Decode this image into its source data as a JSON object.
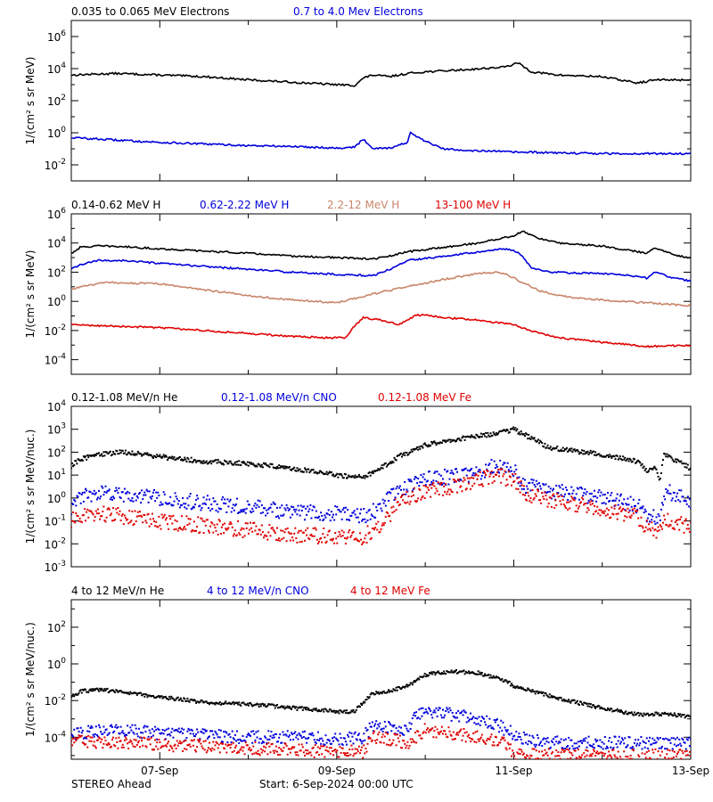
{
  "footer": {
    "left": "STEREO Ahead",
    "center": "Start:  6-Sep-2024 00:00 UTC"
  },
  "x_axis": {
    "tick_labels": [
      "07-Sep",
      "09-Sep",
      "11-Sep",
      "13-Sep"
    ],
    "tick_values": [
      1,
      3,
      5,
      7
    ],
    "range": [
      0,
      7
    ],
    "unit": "days since start"
  },
  "colors": {
    "black": "#000000",
    "blue": "#0000dd",
    "tan": "#c8866a",
    "red": "#e00000"
  },
  "chart_data": [
    {
      "type": "line",
      "ylabel": "1/(cm² s sr MeV)",
      "ylim_log10": [
        -3,
        7
      ],
      "yticks_log10": [
        -2,
        0,
        2,
        4,
        6
      ],
      "ticklabels": [
        "10^-2",
        "10^0",
        "10^2",
        "10^4",
        "10^6"
      ],
      "series": [
        {
          "name": "0.035 to 0.065 MeV Electrons",
          "color": "#000000",
          "x": [
            0,
            0.5,
            1.0,
            1.5,
            2.0,
            2.5,
            3.0,
            3.2,
            3.3,
            3.4,
            3.6,
            3.8,
            4.0,
            4.5,
            4.9,
            5.05,
            5.2,
            5.5,
            6.0,
            6.4,
            6.6,
            7.0
          ],
          "y": [
            3.6,
            3.7,
            3.6,
            3.5,
            3.3,
            3.15,
            3.0,
            2.95,
            3.4,
            3.6,
            3.5,
            3.7,
            3.8,
            3.95,
            4.1,
            4.35,
            3.8,
            3.6,
            3.5,
            3.1,
            3.3,
            3.3
          ]
        },
        {
          "name": "0.7 to 4.0 Mev Electrons",
          "color": "#0000dd",
          "x": [
            0,
            0.5,
            1.0,
            1.5,
            2.0,
            2.5,
            3.0,
            3.2,
            3.3,
            3.4,
            3.6,
            3.8,
            3.83,
            3.95,
            4.2,
            4.5,
            5.0,
            5.5,
            6.0,
            6.5,
            7.0
          ],
          "y": [
            -0.3,
            -0.45,
            -0.6,
            -0.7,
            -0.8,
            -0.85,
            -0.95,
            -0.9,
            -0.4,
            -0.95,
            -0.95,
            -0.6,
            0.0,
            -0.4,
            -1.0,
            -1.1,
            -1.2,
            -1.25,
            -1.3,
            -1.3,
            -1.3
          ]
        }
      ]
    },
    {
      "type": "line",
      "ylabel": "1/(cm² s sr MeV)",
      "ylim_log10": [
        -5,
        6
      ],
      "yticks_log10": [
        -4,
        -2,
        0,
        2,
        4,
        6
      ],
      "ticklabels": [
        "10^-4",
        "10^-2",
        "10^0",
        "10^2",
        "10^4",
        "10^6"
      ],
      "series": [
        {
          "name": "0.14-0.62 MeV H",
          "color": "#000000",
          "x": [
            0,
            0.1,
            0.3,
            0.6,
            1.0,
            1.5,
            2.0,
            2.5,
            3.0,
            3.4,
            3.6,
            3.8,
            4.2,
            4.6,
            5.0,
            5.1,
            5.3,
            5.5,
            6.0,
            6.3,
            6.5,
            6.6,
            6.8,
            7.0
          ],
          "y": [
            3.3,
            3.7,
            3.8,
            3.75,
            3.6,
            3.45,
            3.3,
            3.1,
            3.0,
            2.9,
            3.1,
            3.4,
            3.7,
            4.0,
            4.5,
            4.8,
            4.3,
            4.0,
            3.8,
            3.5,
            3.3,
            3.7,
            3.2,
            3.0
          ]
        },
        {
          "name": "0.62-2.22 MeV H",
          "color": "#0000dd",
          "x": [
            0,
            0.1,
            0.3,
            0.6,
            1.0,
            1.5,
            2.0,
            2.5,
            3.0,
            3.4,
            3.6,
            3.8,
            4.2,
            4.6,
            4.9,
            5.0,
            5.1,
            5.2,
            5.4,
            6.0,
            6.3,
            6.5,
            6.6,
            6.8,
            7.0
          ],
          "y": [
            2.2,
            2.5,
            2.8,
            2.8,
            2.6,
            2.4,
            2.2,
            2.0,
            1.85,
            1.75,
            2.2,
            2.8,
            3.1,
            3.4,
            3.6,
            3.5,
            3.1,
            2.3,
            2.0,
            1.9,
            1.8,
            1.6,
            2.0,
            1.6,
            1.4
          ]
        },
        {
          "name": "2.2-12 MeV H",
          "color": "#c8866a",
          "x": [
            0,
            0.1,
            0.4,
            1.0,
            1.5,
            2.0,
            2.5,
            3.0,
            3.2,
            3.4,
            3.8,
            4.2,
            4.6,
            4.8,
            4.9,
            5.1,
            5.3,
            5.6,
            6.0,
            6.5,
            7.0
          ],
          "y": [
            0.8,
            1.0,
            1.3,
            1.2,
            0.8,
            0.4,
            0.1,
            -0.1,
            0.2,
            0.5,
            1.0,
            1.5,
            1.9,
            2.0,
            1.9,
            1.3,
            0.7,
            0.3,
            0.1,
            -0.1,
            -0.3
          ]
        },
        {
          "name": "13-100 MeV H",
          "color": "#e00000",
          "x": [
            0,
            0.5,
            1.0,
            1.5,
            2.0,
            2.5,
            2.9,
            3.1,
            3.2,
            3.3,
            3.5,
            3.7,
            3.8,
            3.9,
            4.0,
            4.2,
            4.6,
            5.0,
            5.2,
            5.5,
            6.0,
            6.5,
            7.0
          ],
          "y": [
            -1.6,
            -1.7,
            -1.8,
            -2.0,
            -2.2,
            -2.4,
            -2.5,
            -2.5,
            -1.7,
            -1.1,
            -1.3,
            -1.6,
            -1.3,
            -0.95,
            -0.95,
            -1.1,
            -1.3,
            -1.6,
            -2.0,
            -2.5,
            -2.8,
            -3.1,
            -3.0
          ]
        }
      ]
    },
    {
      "type": "scatter",
      "ylabel": "1/(cm² s sr MeV/nuc.)",
      "ylim_log10": [
        -3,
        4
      ],
      "yticks_log10": [
        -3,
        -2,
        -1,
        0,
        1,
        2,
        3,
        4
      ],
      "ticklabels": [
        "10^-3",
        "10^-2",
        "10^-1",
        "10^0",
        "10^1",
        "10^2",
        "10^3",
        "10^4"
      ],
      "series": [
        {
          "name": "0.12-1.08 MeV/n He",
          "color": "#000000",
          "x": [
            0,
            0.1,
            0.3,
            0.6,
            1.0,
            1.5,
            2.0,
            2.5,
            3.0,
            3.3,
            3.5,
            3.7,
            4.0,
            4.4,
            4.8,
            5.0,
            5.2,
            5.4,
            6.0,
            6.4,
            6.5,
            6.6,
            6.65,
            6.7,
            6.8,
            7.0
          ],
          "y": [
            1.4,
            1.7,
            1.9,
            2.0,
            1.8,
            1.6,
            1.5,
            1.3,
            1.0,
            0.9,
            1.3,
            1.8,
            2.3,
            2.6,
            2.8,
            3.0,
            2.6,
            2.2,
            1.9,
            1.6,
            1.2,
            1.3,
            0.7,
            1.9,
            1.7,
            1.3
          ]
        },
        {
          "name": "0.12-1.08 MeV/n CNO",
          "color": "#0000dd",
          "x": [
            0,
            0.1,
            0.3,
            0.6,
            1.0,
            1.5,
            2.0,
            2.5,
            3.0,
            3.3,
            3.5,
            3.7,
            4.0,
            4.4,
            4.6,
            4.8,
            5.0,
            5.1,
            5.2,
            5.4,
            6.0,
            6.4,
            6.5,
            6.65,
            6.7,
            6.8,
            7.0
          ],
          "y": [
            -0.4,
            0.0,
            0.2,
            0.1,
            0.0,
            -0.2,
            -0.4,
            -0.6,
            -0.7,
            -0.8,
            -0.4,
            0.4,
            0.8,
            1.0,
            1.1,
            1.4,
            1.2,
            0.6,
            0.5,
            0.3,
            0.0,
            -0.3,
            -0.7,
            -0.9,
            0.3,
            0.2,
            -0.2
          ]
        },
        {
          "name": "0.12-1.08 MeV Fe",
          "color": "#e00000",
          "x": [
            0,
            0.1,
            0.3,
            0.6,
            1.0,
            1.5,
            2.0,
            2.5,
            3.0,
            3.3,
            3.5,
            3.7,
            4.0,
            4.4,
            4.6,
            4.8,
            5.0,
            5.1,
            5.3,
            5.6,
            6.0,
            6.4,
            6.5,
            6.65,
            6.7,
            6.8,
            7.0
          ],
          "y": [
            -1.0,
            -0.8,
            -0.7,
            -0.8,
            -1.0,
            -1.2,
            -1.4,
            -1.6,
            -1.7,
            -1.7,
            -1.2,
            -0.2,
            0.3,
            0.6,
            0.8,
            1.0,
            0.8,
            0.3,
            0.0,
            -0.2,
            -0.5,
            -0.8,
            -1.3,
            -1.5,
            -0.8,
            -1.0,
            -1.3
          ]
        }
      ]
    },
    {
      "type": "scatter",
      "ylabel": "1/(cm² s sr MeV/nuc.)",
      "ylim_log10": [
        -5.2,
        3.5
      ],
      "yticks_log10": [
        -4,
        -2,
        0,
        2
      ],
      "ticklabels": [
        "10^-4",
        "10^-2",
        "10^0",
        "10^2"
      ],
      "series": [
        {
          "name": "4 to 12 MeV/n He",
          "color": "#000000",
          "x": [
            0,
            0.1,
            0.3,
            0.5,
            1.0,
            1.5,
            2.0,
            2.5,
            3.0,
            3.2,
            3.4,
            3.6,
            3.8,
            4.0,
            4.3,
            4.6,
            4.9,
            5.0,
            5.3,
            5.6,
            6.0,
            6.3,
            6.5,
            6.7,
            7.0
          ],
          "y": [
            -1.8,
            -1.5,
            -1.4,
            -1.5,
            -1.8,
            -2.1,
            -2.2,
            -2.4,
            -2.6,
            -2.6,
            -1.6,
            -1.5,
            -1.2,
            -0.6,
            -0.4,
            -0.5,
            -0.9,
            -1.2,
            -1.6,
            -2.0,
            -2.4,
            -2.7,
            -2.8,
            -2.7,
            -2.9
          ]
        },
        {
          "name": "4 to 12 MeV/n CNO",
          "color": "#0000dd",
          "x": [
            0,
            0.5,
            1.0,
            1.5,
            2.0,
            2.5,
            3.0,
            3.3,
            3.4,
            3.6,
            3.8,
            3.9,
            4.0,
            4.2,
            4.5,
            4.8,
            5.0,
            5.2,
            5.4,
            6.0,
            6.5,
            7.0
          ],
          "y": [
            -3.8,
            -3.6,
            -3.8,
            -3.9,
            -4.0,
            -4.0,
            -4.1,
            -4.0,
            -3.4,
            -3.5,
            -3.6,
            -2.8,
            -2.6,
            -2.7,
            -2.9,
            -3.3,
            -3.8,
            -4.2,
            -4.3,
            -4.3,
            -4.3,
            -4.3
          ]
        },
        {
          "name": "4 to 12 MeV Fe",
          "color": "#e00000",
          "x": [
            0,
            0.5,
            1.0,
            1.5,
            2.0,
            2.5,
            3.0,
            3.3,
            3.4,
            3.6,
            3.8,
            4.0,
            4.3,
            4.6,
            4.9,
            5.0,
            5.5,
            6.0,
            6.5,
            7.0
          ],
          "y": [
            -4.2,
            -4.3,
            -4.4,
            -4.5,
            -4.6,
            -4.7,
            -4.8,
            -4.8,
            -4.0,
            -4.1,
            -4.3,
            -3.6,
            -3.8,
            -4.0,
            -4.3,
            -4.9,
            -5.0,
            -5.0,
            -5.0,
            -5.0
          ]
        }
      ]
    }
  ]
}
